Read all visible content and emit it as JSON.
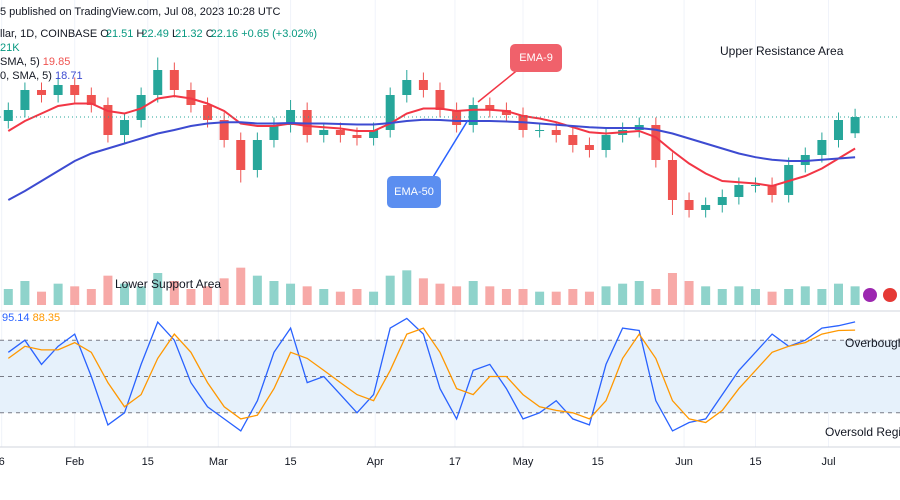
{
  "chart_data": [
    {
      "type": "candlestick",
      "header": {
        "published": "5 published on TradingView.com, Jul 08, 2023 10:28 UTC",
        "symbol": "llar, 1D, COINBASE",
        "ohlc_labels": [
          "O",
          "H",
          "L",
          "C"
        ],
        "change": "+0.65 (+3.02%)"
      },
      "annotations": [
        "Upper Resistance Area",
        "Lower Support Area"
      ],
      "up_color": "#26a69a",
      "down_color": "#ef5350",
      "xlim": [
        -0.5,
        52.5
      ],
      "xticks": [
        {
          "value": -0.4,
          "label": "6"
        },
        {
          "value": 4.0,
          "label": "Feb"
        },
        {
          "value": 8.4,
          "label": "15"
        },
        {
          "value": 12.65,
          "label": "Mar"
        },
        {
          "value": 17.0,
          "label": "15"
        },
        {
          "value": 22.1,
          "label": "Apr"
        },
        {
          "value": 26.9,
          "label": "17"
        },
        {
          "value": 31.0,
          "label": "May"
        },
        {
          "value": 35.5,
          "label": "15"
        },
        {
          "value": 40.7,
          "label": "Jun"
        },
        {
          "value": 45.0,
          "label": "15"
        },
        {
          "value": 49.4,
          "label": "Jul"
        }
      ],
      "ylim": [
        17.24,
        26.04
      ],
      "grid": true,
      "open": [
        22.0,
        22.44,
        23.24,
        23.04,
        23.44,
        23.04,
        22.64,
        21.44,
        22.04,
        23.04,
        24.04,
        23.24,
        22.64,
        22.04,
        21.24,
        20.04,
        21.24,
        21.84,
        22.44,
        21.44,
        21.64,
        21.44,
        21.32,
        21.64,
        23.04,
        23.64,
        23.24,
        22.44,
        21.84,
        22.64,
        22.44,
        22.24,
        21.64,
        21.64,
        21.44,
        21.04,
        20.84,
        21.44,
        21.64,
        21.84,
        20.44,
        18.84,
        18.44,
        18.64,
        18.96,
        19.44,
        19.44,
        19.04,
        20.24,
        20.64,
        21.24,
        21.51
      ],
      "high": [
        22.74,
        23.54,
        23.54,
        23.74,
        23.74,
        23.34,
        22.94,
        22.34,
        23.34,
        24.54,
        24.34,
        23.54,
        22.94,
        22.34,
        21.54,
        21.54,
        22.14,
        22.84,
        22.74,
        21.94,
        21.94,
        21.74,
        21.94,
        23.34,
        24.04,
        23.94,
        23.54,
        22.74,
        22.94,
        22.94,
        22.74,
        22.54,
        21.94,
        21.94,
        21.74,
        21.34,
        21.74,
        21.94,
        22.14,
        22.14,
        20.74,
        19.14,
        18.94,
        19.26,
        19.74,
        19.74,
        19.74,
        20.54,
        20.94,
        21.54,
        22.34,
        22.49
      ],
      "low": [
        21.7,
        22.14,
        22.74,
        22.74,
        22.74,
        22.34,
        21.14,
        21.14,
        21.74,
        22.74,
        22.94,
        22.34,
        21.74,
        20.94,
        19.54,
        19.74,
        20.94,
        21.54,
        21.14,
        21.14,
        21.14,
        21.02,
        21.02,
        21.34,
        22.74,
        22.94,
        22.14,
        21.54,
        21.54,
        22.14,
        21.94,
        21.34,
        21.34,
        21.14,
        20.74,
        20.54,
        20.54,
        21.14,
        21.34,
        20.14,
        18.24,
        18.14,
        18.14,
        18.34,
        18.66,
        19.14,
        18.74,
        18.74,
        19.94,
        20.34,
        20.94,
        21.32
      ],
      "close": [
        22.44,
        23.24,
        23.04,
        23.44,
        23.04,
        22.64,
        21.44,
        22.04,
        23.04,
        24.04,
        23.24,
        22.64,
        22.04,
        21.24,
        20.04,
        21.24,
        21.84,
        22.44,
        21.44,
        21.64,
        21.44,
        21.32,
        21.64,
        23.04,
        23.64,
        23.24,
        22.44,
        21.84,
        22.64,
        22.44,
        22.24,
        21.64,
        21.64,
        21.44,
        21.04,
        20.84,
        21.44,
        21.64,
        21.84,
        20.44,
        18.84,
        18.44,
        18.64,
        18.96,
        19.44,
        19.44,
        19.04,
        20.24,
        20.64,
        21.24,
        22.04,
        22.16
      ],
      "series": [
        {
          "name": "EMA-9",
          "color": "#f23645",
          "values": [
            21.6,
            22.0,
            22.3,
            22.6,
            22.7,
            22.7,
            22.4,
            22.3,
            22.5,
            22.9,
            23.0,
            22.9,
            22.7,
            22.4,
            21.9,
            21.8,
            21.8,
            21.9,
            21.8,
            21.75,
            21.7,
            21.6,
            21.6,
            21.9,
            22.3,
            22.5,
            22.5,
            22.4,
            22.45,
            22.45,
            22.4,
            22.2,
            22.1,
            21.95,
            21.75,
            21.55,
            21.5,
            21.55,
            21.6,
            21.35,
            20.8,
            20.3,
            19.9,
            19.6,
            19.55,
            19.5,
            19.4,
            19.6,
            19.8,
            20.1,
            20.5,
            20.9
          ]
        },
        {
          "name": "EMA-50",
          "color": "#3d4bd1",
          "values": [
            18.84,
            19.2,
            19.6,
            20.0,
            20.4,
            20.7,
            20.9,
            21.1,
            21.3,
            21.5,
            21.64,
            21.8,
            21.9,
            21.95,
            21.95,
            21.9,
            21.9,
            21.92,
            21.9,
            21.9,
            21.88,
            21.86,
            21.86,
            21.92,
            22.0,
            22.05,
            22.04,
            22.0,
            22.0,
            22.0,
            21.98,
            21.95,
            21.9,
            21.85,
            21.8,
            21.75,
            21.72,
            21.72,
            21.72,
            21.65,
            21.5,
            21.3,
            21.1,
            20.9,
            20.7,
            20.55,
            20.45,
            20.4,
            20.4,
            20.45,
            20.5,
            20.55
          ]
        }
      ]
    },
    {
      "type": "bar",
      "legend": {
        "volume": "21K",
        "ma1_label": "SMA, 5)",
        "ma1_value": "19.85",
        "ma2_label": "0, SMA, 5)",
        "ma2_value": "18.71"
      },
      "up_color": "#8fd3cb",
      "down_color": "#f7a9a7",
      "ylim": [
        0,
        150
      ],
      "values": [
        30,
        45,
        25,
        40,
        35,
        30,
        55,
        40,
        35,
        60,
        45,
        30,
        35,
        50,
        70,
        55,
        45,
        40,
        35,
        30,
        25,
        30,
        25,
        55,
        65,
        50,
        40,
        35,
        45,
        35,
        30,
        30,
        25,
        25,
        30,
        25,
        35,
        40,
        45,
        30,
        60,
        45,
        35,
        30,
        35,
        30,
        25,
        30,
        35,
        30,
        40,
        35
      ]
    },
    {
      "type": "line",
      "ylim": [
        0,
        100
      ],
      "levels": [
        80,
        50,
        20
      ],
      "annotations": [
        "Overbought",
        "Oversold Region"
      ],
      "series": [
        {
          "color": "#2962ff",
          "values": [
            70,
            80,
            60,
            75,
            85,
            50,
            10,
            20,
            60,
            95,
            80,
            45,
            25,
            15,
            5,
            30,
            70,
            90,
            45,
            50,
            35,
            20,
            35,
            90,
            98,
            85,
            40,
            15,
            55,
            60,
            40,
            15,
            20,
            30,
            15,
            10,
            60,
            90,
            88,
            30,
            5,
            12,
            15,
            35,
            55,
            70,
            85,
            75,
            80,
            90,
            92,
            95.14
          ]
        },
        {
          "color": "#ff9800",
          "values": [
            65,
            75,
            72,
            72,
            78,
            70,
            45,
            25,
            35,
            65,
            85,
            70,
            45,
            25,
            15,
            18,
            40,
            70,
            65,
            55,
            45,
            35,
            30,
            55,
            85,
            90,
            70,
            40,
            35,
            50,
            50,
            35,
            25,
            22,
            20,
            15,
            30,
            65,
            85,
            65,
            30,
            15,
            12,
            22,
            40,
            55,
            70,
            75,
            78,
            85,
            88,
            88.35
          ]
        }
      ]
    }
  ]
}
